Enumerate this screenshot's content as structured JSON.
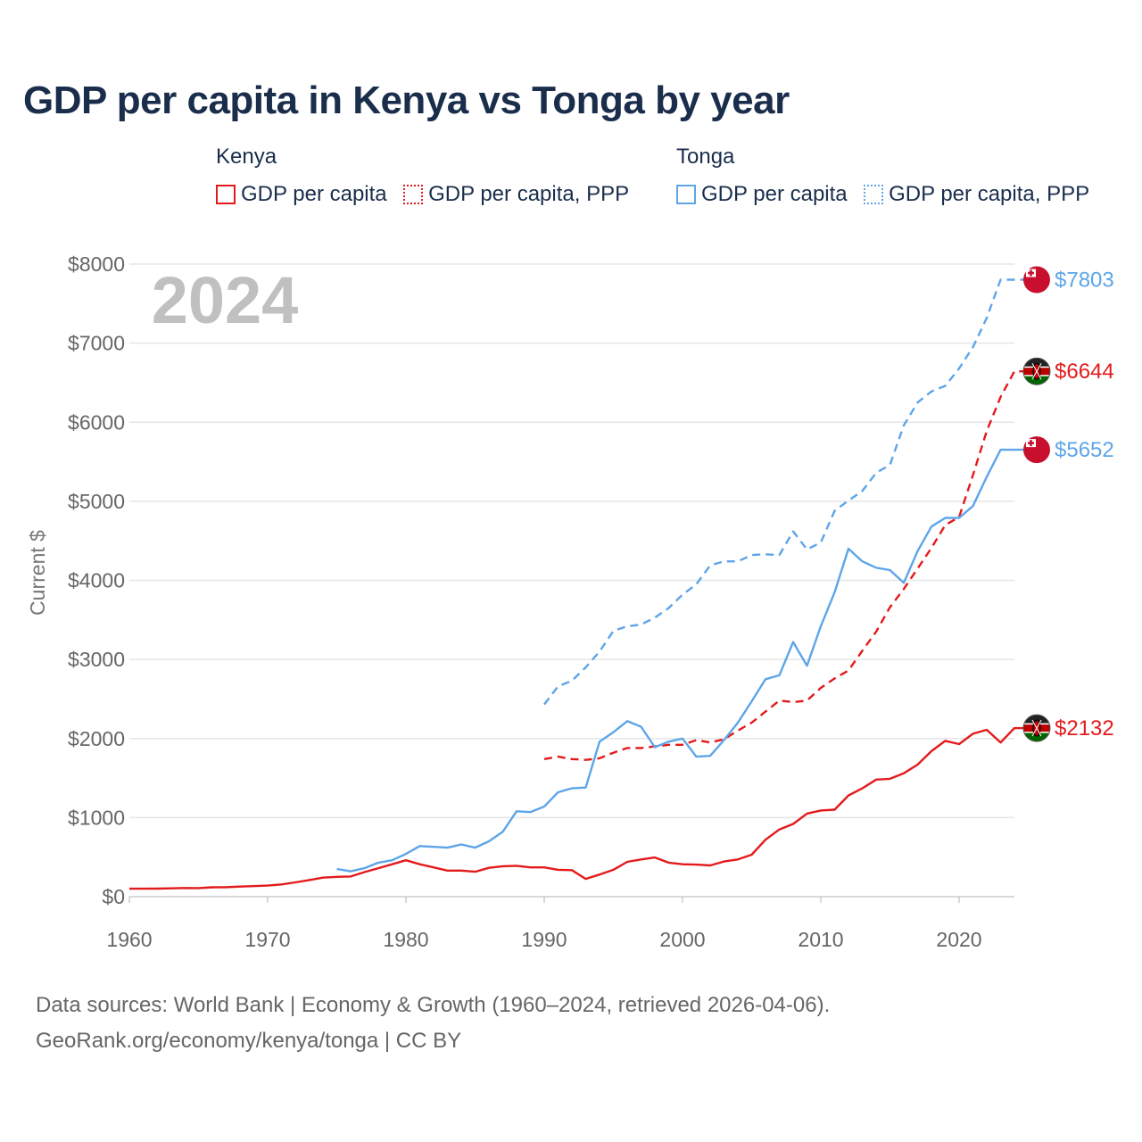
{
  "title": "GDP per capita in Kenya vs Tonga by year",
  "legend": {
    "groups": [
      {
        "name": "Kenya",
        "items": [
          {
            "label": "GDP per capita",
            "color": "#e31a1c",
            "style": "solid"
          },
          {
            "label": "GDP per capita, PPP",
            "color": "#e31a1c",
            "style": "dotted"
          }
        ]
      },
      {
        "name": "Tonga",
        "items": [
          {
            "label": "GDP per capita",
            "color": "#5da5e8",
            "style": "solid"
          },
          {
            "label": "GDP per capita, PPP",
            "color": "#5da5e8",
            "style": "dotted"
          }
        ]
      }
    ]
  },
  "footer": {
    "line1": "Data sources: World Bank | Economy & Growth (1960–2024, retrieved 2026-04-06).",
    "line2": "GeoRank.org/economy/kenya/tonga | CC BY"
  },
  "chart_data": {
    "type": "line",
    "year_label": "2024",
    "ylabel": "Current $",
    "xlim": [
      1960,
      2024
    ],
    "ylim": [
      0,
      8000
    ],
    "x_ticks": [
      1960,
      1970,
      1980,
      1990,
      2000,
      2010,
      2020
    ],
    "y_ticks": [
      {
        "value": 0,
        "label": "$0"
      },
      {
        "value": 1000,
        "label": "$1000"
      },
      {
        "value": 2000,
        "label": "$2000"
      },
      {
        "value": 3000,
        "label": "$3000"
      },
      {
        "value": 4000,
        "label": "$4000"
      },
      {
        "value": 5000,
        "label": "$5000"
      },
      {
        "value": 6000,
        "label": "$6000"
      },
      {
        "value": 7000,
        "label": "$7000"
      },
      {
        "value": 8000,
        "label": "$8000"
      }
    ],
    "series": [
      {
        "name": "Kenya GDP per capita",
        "country": "Kenya",
        "color": "#e31a1c",
        "dashed": false,
        "end_label": "$2132",
        "x": [
          1960,
          1961,
          1962,
          1963,
          1964,
          1965,
          1966,
          1967,
          1968,
          1969,
          1970,
          1971,
          1972,
          1973,
          1974,
          1975,
          1976,
          1977,
          1978,
          1979,
          1980,
          1981,
          1982,
          1983,
          1984,
          1985,
          1986,
          1987,
          1988,
          1989,
          1990,
          1991,
          1992,
          1993,
          1994,
          1995,
          1996,
          1997,
          1998,
          1999,
          2000,
          2001,
          2002,
          2003,
          2004,
          2005,
          2006,
          2007,
          2008,
          2009,
          2010,
          2011,
          2012,
          2013,
          2014,
          2015,
          2016,
          2017,
          2018,
          2019,
          2020,
          2021,
          2022,
          2023,
          2024
        ],
        "values": [
          100,
          100,
          102,
          105,
          110,
          108,
          118,
          120,
          128,
          133,
          140,
          155,
          180,
          210,
          240,
          250,
          255,
          310,
          360,
          410,
          460,
          410,
          370,
          330,
          330,
          315,
          365,
          385,
          390,
          370,
          370,
          340,
          335,
          225,
          280,
          340,
          440,
          470,
          495,
          430,
          410,
          405,
          395,
          445,
          470,
          530,
          720,
          850,
          920,
          1050,
          1090,
          1100,
          1280,
          1370,
          1480,
          1490,
          1560,
          1670,
          1840,
          1970,
          1930,
          2060,
          2110,
          1950,
          2132
        ]
      },
      {
        "name": "Kenya GDP per capita, PPP",
        "country": "Kenya",
        "color": "#e31a1c",
        "dashed": true,
        "end_label": "$6644",
        "x": [
          1990,
          1991,
          1992,
          1993,
          1994,
          1995,
          1996,
          1997,
          1998,
          1999,
          2000,
          2001,
          2002,
          2003,
          2004,
          2005,
          2006,
          2007,
          2008,
          2009,
          2010,
          2011,
          2012,
          2013,
          2014,
          2015,
          2016,
          2017,
          2018,
          2019,
          2020,
          2021,
          2022,
          2023,
          2024
        ],
        "values": [
          1740,
          1770,
          1740,
          1730,
          1750,
          1820,
          1880,
          1880,
          1900,
          1920,
          1920,
          1980,
          1950,
          1990,
          2100,
          2200,
          2340,
          2480,
          2460,
          2480,
          2640,
          2760,
          2860,
          3110,
          3350,
          3660,
          3890,
          4150,
          4410,
          4700,
          4800,
          5330,
          5890,
          6320,
          6644
        ]
      },
      {
        "name": "Tonga GDP per capita",
        "country": "Tonga",
        "color": "#5da5e8",
        "dashed": false,
        "end_label": "$5652",
        "x": [
          1975,
          1976,
          1977,
          1978,
          1979,
          1980,
          1981,
          1982,
          1983,
          1984,
          1985,
          1986,
          1987,
          1988,
          1989,
          1990,
          1991,
          1992,
          1993,
          1994,
          1995,
          1996,
          1997,
          1998,
          1999,
          2000,
          2001,
          2002,
          2003,
          2004,
          2005,
          2006,
          2007,
          2008,
          2009,
          2010,
          2011,
          2012,
          2013,
          2014,
          2015,
          2016,
          2017,
          2018,
          2019,
          2020,
          2021,
          2022,
          2023,
          2024
        ],
        "values": [
          350,
          320,
          360,
          430,
          460,
          540,
          640,
          630,
          620,
          660,
          620,
          700,
          820,
          1080,
          1070,
          1140,
          1320,
          1370,
          1380,
          1960,
          2080,
          2220,
          2150,
          1890,
          1960,
          2000,
          1770,
          1780,
          1980,
          2200,
          2470,
          2750,
          2800,
          3220,
          2920,
          3420,
          3850,
          4400,
          4240,
          4160,
          4130,
          3970,
          4370,
          4680,
          4790,
          4790,
          4940,
          5310,
          5652,
          5652
        ]
      },
      {
        "name": "Tonga GDP per capita, PPP",
        "country": "Tonga",
        "color": "#5da5e8",
        "dashed": true,
        "end_label": "$7803",
        "x": [
          1990,
          1991,
          1992,
          1993,
          1994,
          1995,
          1996,
          1997,
          1998,
          1999,
          2000,
          2001,
          2002,
          2003,
          2004,
          2005,
          2006,
          2007,
          2008,
          2009,
          2010,
          2011,
          2012,
          2013,
          2014,
          2015,
          2016,
          2017,
          2018,
          2019,
          2020,
          2021,
          2022,
          2023,
          2024
        ],
        "values": [
          2430,
          2660,
          2730,
          2900,
          3100,
          3360,
          3420,
          3440,
          3530,
          3650,
          3820,
          3950,
          4190,
          4240,
          4240,
          4320,
          4330,
          4320,
          4620,
          4390,
          4480,
          4880,
          5010,
          5130,
          5360,
          5460,
          5960,
          6250,
          6390,
          6460,
          6680,
          6950,
          7320,
          7803,
          7803
        ]
      }
    ]
  }
}
